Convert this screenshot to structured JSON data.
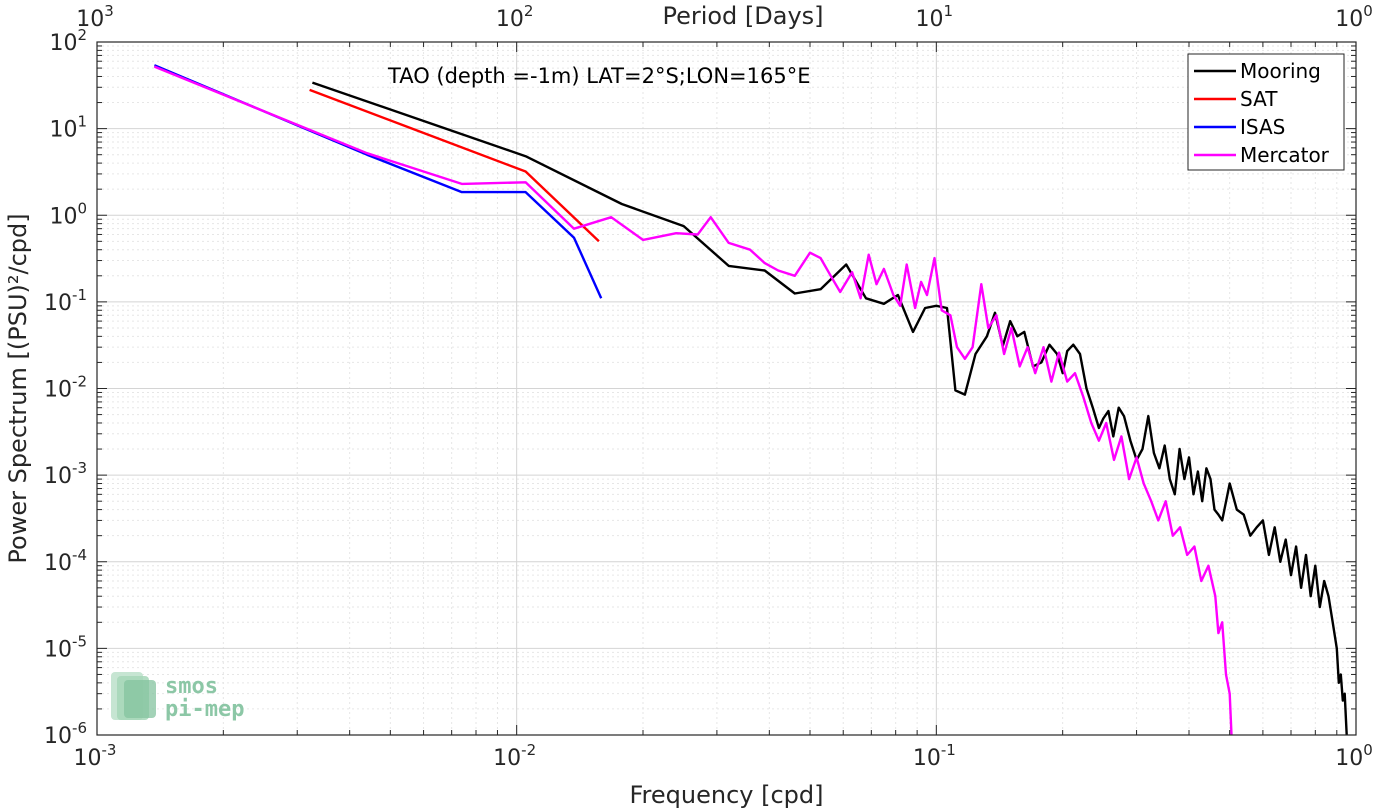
{
  "chart_data": {
    "type": "line",
    "title": "TAO (depth =-1m) LAT=2°S;LON=165°E",
    "xlabel": "Frequency [cpd]",
    "ylabel": "Power Spectrum [(PSU)²/cpd]",
    "top_xlabel": "Period [Days]",
    "x_scale": "log",
    "y_scale": "log",
    "xlim": [
      0.001,
      1
    ],
    "ylim": [
      1e-06,
      100
    ],
    "grid": true,
    "minor_grid": true,
    "legend_position": "top-right",
    "x_ticks": [
      {
        "value": 0.001,
        "base": "10",
        "exp": "-3"
      },
      {
        "value": 0.01,
        "base": "10",
        "exp": "-2"
      },
      {
        "value": 0.1,
        "base": "10",
        "exp": "-1"
      },
      {
        "value": 1,
        "base": "10",
        "exp": "0"
      }
    ],
    "top_ticks": [
      {
        "value": 0.001,
        "base": "10",
        "exp": "3"
      },
      {
        "value": 0.01,
        "base": "10",
        "exp": "2"
      },
      {
        "value": 0.1,
        "base": "10",
        "exp": "1"
      },
      {
        "value": 1,
        "base": "10",
        "exp": "0"
      }
    ],
    "y_ticks": [
      {
        "value": 100,
        "base": "10",
        "exp": "2"
      },
      {
        "value": 10,
        "base": "10",
        "exp": "1"
      },
      {
        "value": 1,
        "base": "10",
        "exp": "0"
      },
      {
        "value": 0.1,
        "base": "10",
        "exp": "-1"
      },
      {
        "value": 0.01,
        "base": "10",
        "exp": "-2"
      },
      {
        "value": 0.001,
        "base": "10",
        "exp": "-3"
      },
      {
        "value": 0.0001,
        "base": "10",
        "exp": "-4"
      },
      {
        "value": 1e-05,
        "base": "10",
        "exp": "-5"
      },
      {
        "value": 1e-06,
        "base": "10",
        "exp": "-6"
      }
    ],
    "series": [
      {
        "name": "Mooring",
        "color": "#000000",
        "points": [
          [
            0.00326,
            34
          ],
          [
            0.0105,
            4.8
          ],
          [
            0.0178,
            1.35
          ],
          [
            0.025,
            0.75
          ],
          [
            0.032,
            0.26
          ],
          [
            0.039,
            0.23
          ],
          [
            0.046,
            0.125
          ],
          [
            0.053,
            0.14
          ],
          [
            0.061,
            0.27
          ],
          [
            0.068,
            0.11
          ],
          [
            0.075,
            0.095
          ],
          [
            0.081,
            0.12
          ],
          [
            0.088,
            0.045
          ],
          [
            0.094,
            0.085
          ],
          [
            0.1,
            0.09
          ],
          [
            0.106,
            0.085
          ],
          [
            0.111,
            0.0095
          ],
          [
            0.117,
            0.0085
          ],
          [
            0.124,
            0.025
          ],
          [
            0.132,
            0.04
          ],
          [
            0.138,
            0.075
          ],
          [
            0.144,
            0.031
          ],
          [
            0.15,
            0.06
          ],
          [
            0.156,
            0.04
          ],
          [
            0.162,
            0.045
          ],
          [
            0.17,
            0.018
          ],
          [
            0.178,
            0.02
          ],
          [
            0.186,
            0.032
          ],
          [
            0.194,
            0.025
          ],
          [
            0.2,
            0.015
          ],
          [
            0.205,
            0.027
          ],
          [
            0.212,
            0.032
          ],
          [
            0.22,
            0.025
          ],
          [
            0.228,
            0.01
          ],
          [
            0.236,
            0.006
          ],
          [
            0.244,
            0.0035
          ],
          [
            0.25,
            0.0045
          ],
          [
            0.257,
            0.0055
          ],
          [
            0.264,
            0.0028
          ],
          [
            0.272,
            0.006
          ],
          [
            0.28,
            0.0048
          ],
          [
            0.29,
            0.0025
          ],
          [
            0.3,
            0.0015
          ],
          [
            0.31,
            0.002
          ],
          [
            0.32,
            0.0048
          ],
          [
            0.33,
            0.0018
          ],
          [
            0.34,
            0.0012
          ],
          [
            0.35,
            0.0022
          ],
          [
            0.36,
            0.0009
          ],
          [
            0.37,
            0.0006
          ],
          [
            0.38,
            0.002
          ],
          [
            0.39,
            0.0009
          ],
          [
            0.4,
            0.0016
          ],
          [
            0.41,
            0.0006
          ],
          [
            0.42,
            0.0011
          ],
          [
            0.43,
            0.0005
          ],
          [
            0.44,
            0.0012
          ],
          [
            0.45,
            0.0009
          ],
          [
            0.46,
            0.0004
          ],
          [
            0.47,
            0.00035
          ],
          [
            0.48,
            0.0003
          ],
          [
            0.5,
            0.0008
          ],
          [
            0.52,
            0.0004
          ],
          [
            0.54,
            0.00035
          ],
          [
            0.56,
            0.0002
          ],
          [
            0.58,
            0.00025
          ],
          [
            0.6,
            0.0003
          ],
          [
            0.62,
            0.00012
          ],
          [
            0.64,
            0.00025
          ],
          [
            0.66,
            0.0001
          ],
          [
            0.68,
            0.00018
          ],
          [
            0.7,
            7e-05
          ],
          [
            0.72,
            0.00015
          ],
          [
            0.74,
            5e-05
          ],
          [
            0.76,
            0.00012
          ],
          [
            0.78,
            4e-05
          ],
          [
            0.8,
            9e-05
          ],
          [
            0.82,
            3e-05
          ],
          [
            0.84,
            6e-05
          ],
          [
            0.86,
            4e-05
          ],
          [
            0.88,
            2e-05
          ],
          [
            0.9,
            1e-05
          ],
          [
            0.91,
            4e-06
          ],
          [
            0.92,
            5e-06
          ],
          [
            0.93,
            2.5e-06
          ],
          [
            0.94,
            3e-06
          ],
          [
            0.95,
            1e-06
          ]
        ]
      },
      {
        "name": "SAT",
        "color": "#ff0000",
        "points": [
          [
            0.00321,
            28
          ],
          [
            0.0105,
            3.2
          ],
          [
            0.0157,
            0.5
          ]
        ]
      },
      {
        "name": "ISAS",
        "color": "#0000ff",
        "points": [
          [
            0.00137,
            54
          ],
          [
            0.0044,
            5
          ],
          [
            0.0074,
            1.85
          ],
          [
            0.0105,
            1.85
          ],
          [
            0.0137,
            0.55
          ],
          [
            0.0159,
            0.11
          ]
        ]
      },
      {
        "name": "Mercator",
        "color": "#ff00ff",
        "points": [
          [
            0.00137,
            52
          ],
          [
            0.0044,
            5.2
          ],
          [
            0.0074,
            2.3
          ],
          [
            0.0105,
            2.4
          ],
          [
            0.0137,
            0.7
          ],
          [
            0.0168,
            0.95
          ],
          [
            0.02,
            0.52
          ],
          [
            0.024,
            0.62
          ],
          [
            0.027,
            0.6
          ],
          [
            0.029,
            0.95
          ],
          [
            0.032,
            0.48
          ],
          [
            0.036,
            0.4
          ],
          [
            0.039,
            0.28
          ],
          [
            0.042,
            0.23
          ],
          [
            0.046,
            0.2
          ],
          [
            0.05,
            0.37
          ],
          [
            0.053,
            0.32
          ],
          [
            0.056,
            0.2
          ],
          [
            0.059,
            0.13
          ],
          [
            0.063,
            0.22
          ],
          [
            0.066,
            0.11
          ],
          [
            0.069,
            0.35
          ],
          [
            0.072,
            0.16
          ],
          [
            0.075,
            0.24
          ],
          [
            0.079,
            0.12
          ],
          [
            0.082,
            0.09
          ],
          [
            0.085,
            0.27
          ],
          [
            0.089,
            0.085
          ],
          [
            0.092,
            0.17
          ],
          [
            0.095,
            0.12
          ],
          [
            0.099,
            0.32
          ],
          [
            0.103,
            0.08
          ],
          [
            0.108,
            0.07
          ],
          [
            0.112,
            0.03
          ],
          [
            0.117,
            0.022
          ],
          [
            0.122,
            0.03
          ],
          [
            0.128,
            0.16
          ],
          [
            0.133,
            0.05
          ],
          [
            0.139,
            0.07
          ],
          [
            0.145,
            0.025
          ],
          [
            0.151,
            0.05
          ],
          [
            0.158,
            0.018
          ],
          [
            0.165,
            0.03
          ],
          [
            0.172,
            0.015
          ],
          [
            0.18,
            0.03
          ],
          [
            0.188,
            0.012
          ],
          [
            0.196,
            0.026
          ],
          [
            0.205,
            0.012
          ],
          [
            0.214,
            0.015
          ],
          [
            0.224,
            0.008
          ],
          [
            0.234,
            0.004
          ],
          [
            0.244,
            0.0025
          ],
          [
            0.254,
            0.004
          ],
          [
            0.265,
            0.0015
          ],
          [
            0.276,
            0.0028
          ],
          [
            0.288,
            0.0009
          ],
          [
            0.3,
            0.0016
          ],
          [
            0.312,
            0.0008
          ],
          [
            0.325,
            0.0005
          ],
          [
            0.338,
            0.0003
          ],
          [
            0.352,
            0.0005
          ],
          [
            0.366,
            0.0002
          ],
          [
            0.381,
            0.00025
          ],
          [
            0.396,
            0.00012
          ],
          [
            0.412,
            0.00015
          ],
          [
            0.428,
            6e-05
          ],
          [
            0.445,
            9e-05
          ],
          [
            0.462,
            4e-05
          ],
          [
            0.47,
            1.5e-05
          ],
          [
            0.48,
            2e-05
          ],
          [
            0.49,
            5e-06
          ],
          [
            0.5,
            3e-06
          ],
          [
            0.505,
            1e-06
          ]
        ]
      }
    ]
  },
  "logo": {
    "line1": "smos",
    "line2": "pi-mep"
  }
}
